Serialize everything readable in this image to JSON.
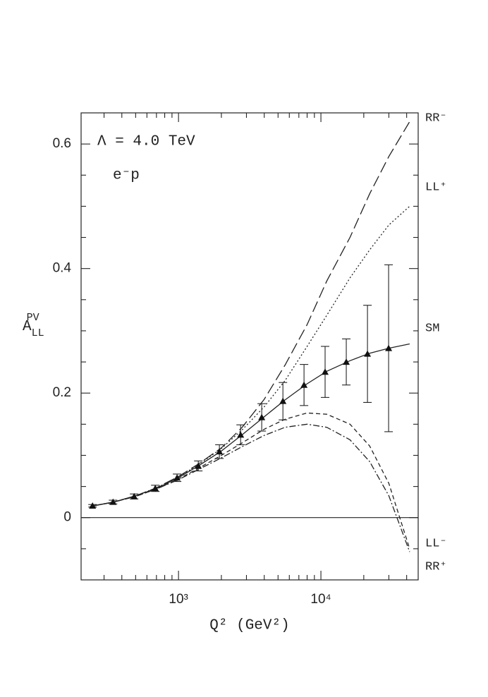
{
  "chart_data": {
    "type": "line",
    "annotations": [
      "Λ = 4.0 TeV",
      "e⁻p"
    ],
    "ylabel": {
      "base": "A",
      "sub": "LL",
      "sup": "PV"
    },
    "xlabel": "Q² (GeV²)",
    "log_x": true,
    "xlim": [
      207,
      48200
    ],
    "ylim": [
      -0.1,
      0.65
    ],
    "xticks": [
      {
        "value": 1000,
        "label": "10³"
      },
      {
        "value": 10000,
        "label": "10⁴"
      }
    ],
    "xminorticks": [
      300,
      400,
      500,
      600,
      700,
      800,
      900,
      2000,
      3000,
      4000,
      5000,
      6000,
      7000,
      8000,
      9000,
      20000,
      30000,
      40000
    ],
    "yticks": [
      0,
      0.2,
      0.4,
      0.6
    ],
    "yminorticks": [
      -0.05,
      0.05,
      0.1,
      0.15,
      0.25,
      0.3,
      0.35,
      0.45,
      0.5,
      0.55
    ],
    "x": [
      240,
      350,
      500,
      700,
      1000,
      1400,
      2000,
      2800,
      4000,
      5600,
      8000,
      11000,
      16000,
      22000,
      30000,
      42000
    ],
    "curves": [
      {
        "name": "RR⁻",
        "color": "#222",
        "dash": "16 6",
        "values": [
          0.018,
          0.025,
          0.035,
          0.048,
          0.066,
          0.087,
          0.112,
          0.145,
          0.19,
          0.245,
          0.31,
          0.38,
          0.45,
          0.52,
          0.58,
          0.636
        ]
      },
      {
        "name": "LL⁺",
        "color": "#222",
        "dash": "2 3",
        "values": [
          0.018,
          0.025,
          0.035,
          0.048,
          0.065,
          0.086,
          0.111,
          0.141,
          0.178,
          0.22,
          0.275,
          0.325,
          0.385,
          0.43,
          0.47,
          0.5
        ]
      },
      {
        "name": "SM",
        "color": "#222",
        "dash": "none",
        "values": [
          0.018,
          0.025,
          0.035,
          0.047,
          0.064,
          0.084,
          0.107,
          0.133,
          0.162,
          0.189,
          0.215,
          0.235,
          0.252,
          0.264,
          0.272,
          0.279
        ]
      },
      {
        "name": "LL⁻",
        "color": "#222",
        "dash": "6 4",
        "values": [
          0.018,
          0.025,
          0.034,
          0.046,
          0.062,
          0.08,
          0.1,
          0.12,
          0.142,
          0.158,
          0.168,
          0.166,
          0.15,
          0.115,
          0.055,
          -0.05
        ]
      },
      {
        "name": "RR⁺",
        "color": "#222",
        "dash": "9 3 2 3",
        "values": [
          0.018,
          0.025,
          0.034,
          0.046,
          0.061,
          0.078,
          0.096,
          0.114,
          0.132,
          0.145,
          0.15,
          0.145,
          0.125,
          0.09,
          0.035,
          -0.055
        ]
      }
    ],
    "points": {
      "x": [
        249,
        347,
        488,
        687,
        977,
        1377,
        1937,
        2730,
        3840,
        5410,
        7610,
        10700,
        15070,
        21230,
        29880
      ],
      "values": [
        0.019,
        0.025,
        0.034,
        0.047,
        0.064,
        0.083,
        0.106,
        0.133,
        0.161,
        0.187,
        0.213,
        0.234,
        0.25,
        0.263,
        0.272
      ],
      "errors": [
        0.002,
        0.003,
        0.004,
        0.005,
        0.006,
        0.008,
        0.011,
        0.016,
        0.022,
        0.03,
        0.033,
        0.041,
        0.037,
        0.078,
        0.134
      ]
    }
  }
}
